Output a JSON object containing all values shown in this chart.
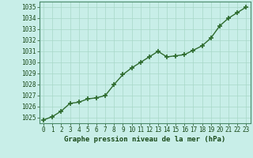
{
  "x": [
    0,
    1,
    2,
    3,
    4,
    5,
    6,
    7,
    8,
    9,
    10,
    11,
    12,
    13,
    14,
    15,
    16,
    17,
    18,
    19,
    20,
    21,
    22,
    23
  ],
  "y": [
    1024.8,
    1025.1,
    1025.6,
    1026.3,
    1026.4,
    1026.7,
    1026.8,
    1027.0,
    1028.0,
    1028.9,
    1029.5,
    1030.0,
    1030.5,
    1031.0,
    1030.5,
    1030.6,
    1030.7,
    1031.1,
    1031.5,
    1032.2,
    1033.3,
    1034.0,
    1034.5,
    1035.0
  ],
  "line_color": "#2d6a2d",
  "marker_color": "#2d6a2d",
  "bg_color": "#c8eee8",
  "grid_color": "#a8d8c8",
  "xlabel": "Graphe pression niveau de la mer (hPa)",
  "xlabel_color": "#1a4a1a",
  "tick_color": "#1a4a1a",
  "ylim": [
    1024.5,
    1035.5
  ],
  "xlim": [
    -0.5,
    23.5
  ],
  "yticks": [
    1025,
    1026,
    1027,
    1028,
    1029,
    1030,
    1031,
    1032,
    1033,
    1034,
    1035
  ],
  "xticks": [
    0,
    1,
    2,
    3,
    4,
    5,
    6,
    7,
    8,
    9,
    10,
    11,
    12,
    13,
    14,
    15,
    16,
    17,
    18,
    19,
    20,
    21,
    22,
    23
  ],
  "tick_fontsize": 5.5,
  "xlabel_fontsize": 6.5,
  "line_width": 1.0,
  "marker_size": 4
}
